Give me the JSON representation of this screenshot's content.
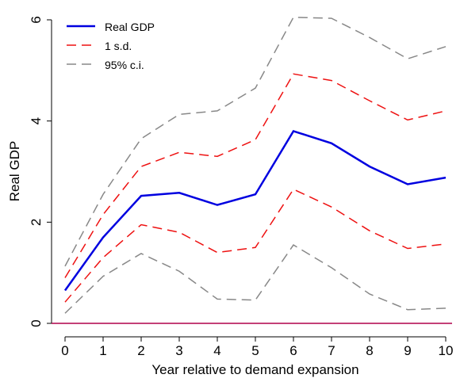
{
  "chart_data": {
    "type": "line",
    "x_label": "Year relative to demand expansion",
    "y_label": "Real GDP",
    "x": [
      0,
      1,
      2,
      3,
      4,
      5,
      6,
      7,
      8,
      9,
      10
    ],
    "xlim": [
      0,
      10
    ],
    "xticks": [
      0,
      1,
      2,
      3,
      4,
      5,
      6,
      7,
      8,
      9,
      10
    ],
    "ylim": [
      0,
      6
    ],
    "yticks": [
      0,
      2,
      4,
      6
    ],
    "hline": 0,
    "hline_color": "#b0004a",
    "legend": "upper left",
    "series": [
      {
        "name": "Real GDP",
        "color": "#0000e0",
        "style": "solid",
        "values": [
          0.65,
          1.7,
          2.52,
          2.58,
          2.34,
          2.55,
          3.8,
          3.56,
          3.1,
          2.75,
          2.88
        ]
      },
      {
        "name": "1 s.d.",
        "color": "#ee1111",
        "style": "dashed",
        "upper": [
          0.9,
          2.15,
          3.1,
          3.38,
          3.3,
          3.63,
          4.93,
          4.8,
          4.4,
          4.02,
          4.2
        ],
        "lower": [
          0.42,
          1.3,
          1.95,
          1.8,
          1.4,
          1.5,
          2.65,
          2.3,
          1.83,
          1.48,
          1.57
        ]
      },
      {
        "name": "95% c.i.",
        "color": "#888888",
        "style": "dashed",
        "upper": [
          1.13,
          2.55,
          3.65,
          4.13,
          4.2,
          4.65,
          6.05,
          6.03,
          5.65,
          5.23,
          5.47
        ],
        "lower": [
          0.2,
          0.93,
          1.38,
          1.03,
          0.48,
          0.46,
          1.55,
          1.1,
          0.58,
          0.27,
          0.3
        ]
      }
    ]
  }
}
